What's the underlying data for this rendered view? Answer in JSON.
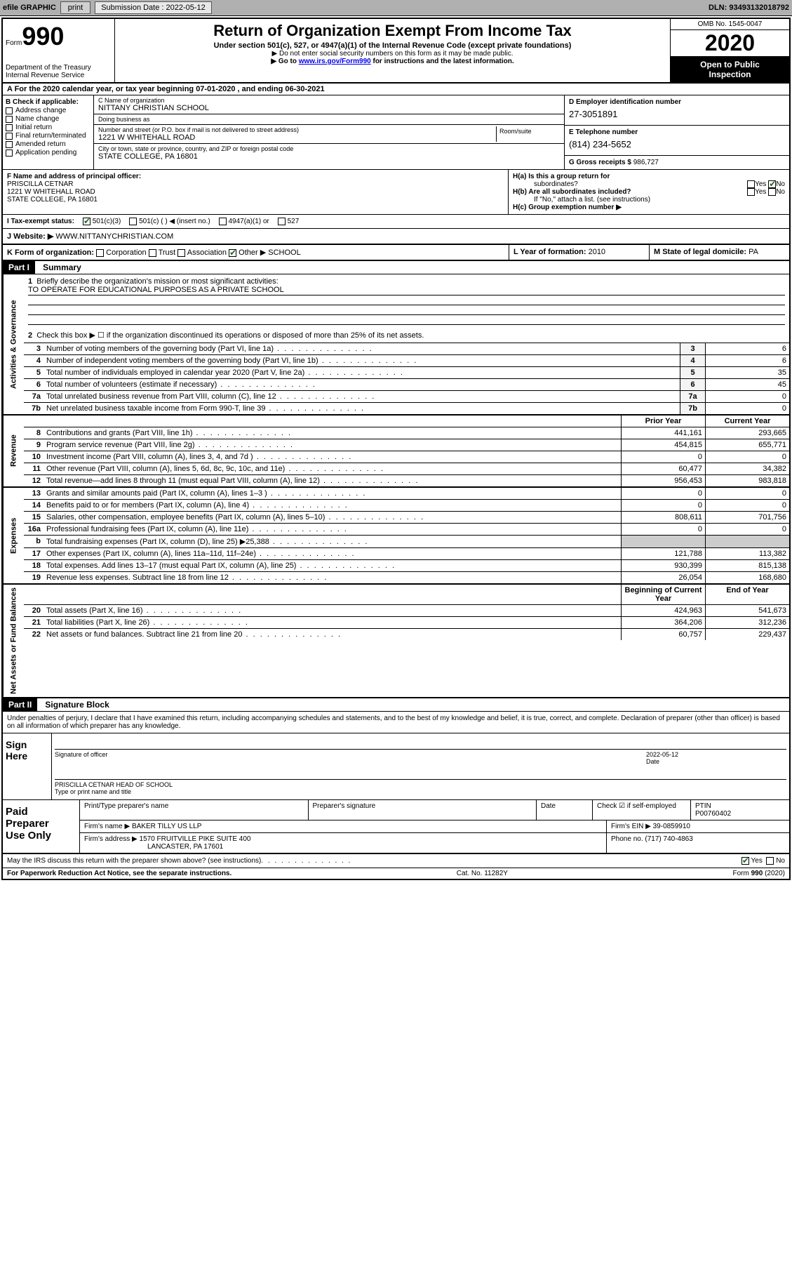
{
  "colors": {
    "topbar_bg": "#b0b0b0",
    "black": "#000000",
    "white": "#ffffff",
    "link": "#0000ee",
    "shade": "#cccccc",
    "check_green": "#1a6b1a"
  },
  "topbar": {
    "efile": "efile GRAPHIC",
    "print": "print",
    "sub_label": "Submission Date : 2022-05-12",
    "dln": "DLN: 93493132018792"
  },
  "header": {
    "form_word": "Form",
    "form_num": "990",
    "dept1": "Department of the Treasury",
    "dept2": "Internal Revenue Service",
    "title": "Return of Organization Exempt From Income Tax",
    "sub1": "Under section 501(c), 527, or 4947(a)(1) of the Internal Revenue Code (except private foundations)",
    "sub2": "▶ Do not enter social security numbers on this form as it may be made public.",
    "sub3_a": "▶ Go to ",
    "sub3_link": "www.irs.gov/Form990",
    "sub3_b": " for instructions and the latest information.",
    "omb": "OMB No. 1545-0047",
    "year": "2020",
    "inspect1": "Open to Public",
    "inspect2": "Inspection"
  },
  "line_a": "A For the 2020 calendar year, or tax year beginning 07-01-2020   , and ending 06-30-2021",
  "section_b": {
    "title": "B Check if applicable:",
    "items": [
      "Address change",
      "Name change",
      "Initial return",
      "Final return/terminated",
      "Amended return",
      "Application pending"
    ]
  },
  "section_c": {
    "name_lbl": "C Name of organization",
    "name": "NITTANY CHRISTIAN SCHOOL",
    "dba_lbl": "Doing business as",
    "dba": "",
    "addr_lbl": "Number and street (or P.O. box if mail is not delivered to street address)",
    "room_lbl": "Room/suite",
    "addr": "1221 W WHITEHALL ROAD",
    "city_lbl": "City or town, state or province, country, and ZIP or foreign postal code",
    "city": "STATE COLLEGE, PA  16801"
  },
  "section_d": {
    "ein_lbl": "D Employer identification number",
    "ein": "27-3051891",
    "tel_lbl": "E Telephone number",
    "tel": "(814) 234-5652",
    "gross_lbl": "G Gross receipts $",
    "gross": "986,727"
  },
  "section_f": {
    "lbl": "F Name and address of principal officer:",
    "name": "PRISCILLA CETNAR",
    "addr1": "1221 W WHITEHALL ROAD",
    "addr2": "STATE COLLEGE, PA  16801"
  },
  "section_h": {
    "ha_lbl": "H(a)  Is this a group return for",
    "ha_sub": "subordinates?",
    "hb_lbl": "H(b)  Are all subordinates included?",
    "hb_note": "If \"No,\" attach a list. (see instructions)",
    "hc_lbl": "H(c)  Group exemption number ▶",
    "yes": "Yes",
    "no": "No"
  },
  "section_i": {
    "lbl": "I  Tax-exempt status:",
    "o1": "501(c)(3)",
    "o2": "501(c) (   ) ◀ (insert no.)",
    "o3": "4947(a)(1) or",
    "o4": "527"
  },
  "section_j": {
    "lbl": "J  Website: ▶",
    "val": "WWW.NITTANYCHRISTIAN.COM"
  },
  "section_k": {
    "lbl": "K Form of organization:",
    "corp": "Corporation",
    "trust": "Trust",
    "assoc": "Association",
    "other": "Other ▶",
    "other_val": "SCHOOL",
    "l_lbl": "L Year of formation:",
    "l_val": "2010",
    "m_lbl": "M State of legal domicile:",
    "m_val": "PA"
  },
  "part1": {
    "hdr": "Part I",
    "title": "Summary",
    "q1_lbl": "Briefly describe the organization's mission or most significant activities:",
    "q1_val": "TO OPERATE FOR EDUCATIONAL PURPOSES AS A PRIVATE SCHOOL",
    "q2": "Check this box ▶ ☐ if the organization discontinued its operations or disposed of more than 25% of its net assets.",
    "rows_gov": [
      {
        "n": "3",
        "t": "Number of voting members of the governing body (Part VI, line 1a)",
        "box": "3",
        "v": "6"
      },
      {
        "n": "4",
        "t": "Number of independent voting members of the governing body (Part VI, line 1b)",
        "box": "4",
        "v": "6"
      },
      {
        "n": "5",
        "t": "Total number of individuals employed in calendar year 2020 (Part V, line 2a)",
        "box": "5",
        "v": "35"
      },
      {
        "n": "6",
        "t": "Total number of volunteers (estimate if necessary)",
        "box": "6",
        "v": "45"
      },
      {
        "n": "7a",
        "t": "Total unrelated business revenue from Part VIII, column (C), line 12",
        "box": "7a",
        "v": "0"
      },
      {
        "n": "7b",
        "t": "Net unrelated business taxable income from Form 990-T, line 39",
        "box": "7b",
        "v": "0"
      }
    ],
    "hdr_prior": "Prior Year",
    "hdr_current": "Current Year",
    "rows_rev": [
      {
        "n": "8",
        "t": "Contributions and grants (Part VIII, line 1h)",
        "p": "441,161",
        "c": "293,665"
      },
      {
        "n": "9",
        "t": "Program service revenue (Part VIII, line 2g)",
        "p": "454,815",
        "c": "655,771"
      },
      {
        "n": "10",
        "t": "Investment income (Part VIII, column (A), lines 3, 4, and 7d )",
        "p": "0",
        "c": "0"
      },
      {
        "n": "11",
        "t": "Other revenue (Part VIII, column (A), lines 5, 6d, 8c, 9c, 10c, and 11e)",
        "p": "60,477",
        "c": "34,382"
      },
      {
        "n": "12",
        "t": "Total revenue—add lines 8 through 11 (must equal Part VIII, column (A), line 12)",
        "p": "956,453",
        "c": "983,818"
      }
    ],
    "rows_exp": [
      {
        "n": "13",
        "t": "Grants and similar amounts paid (Part IX, column (A), lines 1–3 )",
        "p": "0",
        "c": "0"
      },
      {
        "n": "14",
        "t": "Benefits paid to or for members (Part IX, column (A), line 4)",
        "p": "0",
        "c": "0"
      },
      {
        "n": "15",
        "t": "Salaries, other compensation, employee benefits (Part IX, column (A), lines 5–10)",
        "p": "808,611",
        "c": "701,756"
      },
      {
        "n": "16a",
        "t": "Professional fundraising fees (Part IX, column (A), line 11e)",
        "p": "0",
        "c": "0"
      },
      {
        "n": "b",
        "t": "Total fundraising expenses (Part IX, column (D), line 25) ▶25,388",
        "p": "__shade__",
        "c": "__shade__"
      },
      {
        "n": "17",
        "t": "Other expenses (Part IX, column (A), lines 11a–11d, 11f–24e)",
        "p": "121,788",
        "c": "113,382"
      },
      {
        "n": "18",
        "t": "Total expenses. Add lines 13–17 (must equal Part IX, column (A), line 25)",
        "p": "930,399",
        "c": "815,138"
      },
      {
        "n": "19",
        "t": "Revenue less expenses. Subtract line 18 from line 12",
        "p": "26,054",
        "c": "168,680"
      }
    ],
    "hdr_begin": "Beginning of Current Year",
    "hdr_end": "End of Year",
    "rows_na": [
      {
        "n": "20",
        "t": "Total assets (Part X, line 16)",
        "p": "424,963",
        "c": "541,673"
      },
      {
        "n": "21",
        "t": "Total liabilities (Part X, line 26)",
        "p": "364,206",
        "c": "312,236"
      },
      {
        "n": "22",
        "t": "Net assets or fund balances. Subtract line 21 from line 20",
        "p": "60,757",
        "c": "229,437"
      }
    ],
    "vlabels": {
      "gov": "Activities & Governance",
      "rev": "Revenue",
      "exp": "Expenses",
      "na": "Net Assets or Fund Balances"
    }
  },
  "part2": {
    "hdr": "Part II",
    "title": "Signature Block",
    "decl": "Under penalties of perjury, I declare that I have examined this return, including accompanying schedules and statements, and to the best of my knowledge and belief, it is true, correct, and complete. Declaration of preparer (other than officer) is based on all information of which preparer has any knowledge."
  },
  "sign": {
    "left1": "Sign",
    "left2": "Here",
    "sig_lbl": "Signature of officer",
    "date_lbl": "Date",
    "date_val": "2022-05-12",
    "name": "PRISCILLA CETNAR HEAD OF SCHOOL",
    "name_lbl": "Type or print name and title"
  },
  "paid": {
    "left1": "Paid",
    "left2": "Preparer",
    "left3": "Use Only",
    "h_name": "Print/Type preparer's name",
    "h_sig": "Preparer's signature",
    "h_date": "Date",
    "h_check": "Check ☑ if self-employed",
    "h_ptin": "PTIN",
    "ptin": "P00760402",
    "firm_lbl": "Firm's name    ▶",
    "firm": "BAKER TILLY US LLP",
    "ein_lbl": "Firm's EIN ▶",
    "ein": "39-0859910",
    "addr_lbl": "Firm's address ▶",
    "addr1": "1570 FRUITVILLE PIKE SUITE 400",
    "addr2": "LANCASTER, PA  17601",
    "phone_lbl": "Phone no.",
    "phone": "(717) 740-4863"
  },
  "footer": {
    "discuss": "May the IRS discuss this return with the preparer shown above? (see instructions)",
    "yes": "Yes",
    "no": "No",
    "pra": "For Paperwork Reduction Act Notice, see the separate instructions.",
    "cat": "Cat. No. 11282Y",
    "form": "Form 990 (2020)"
  }
}
